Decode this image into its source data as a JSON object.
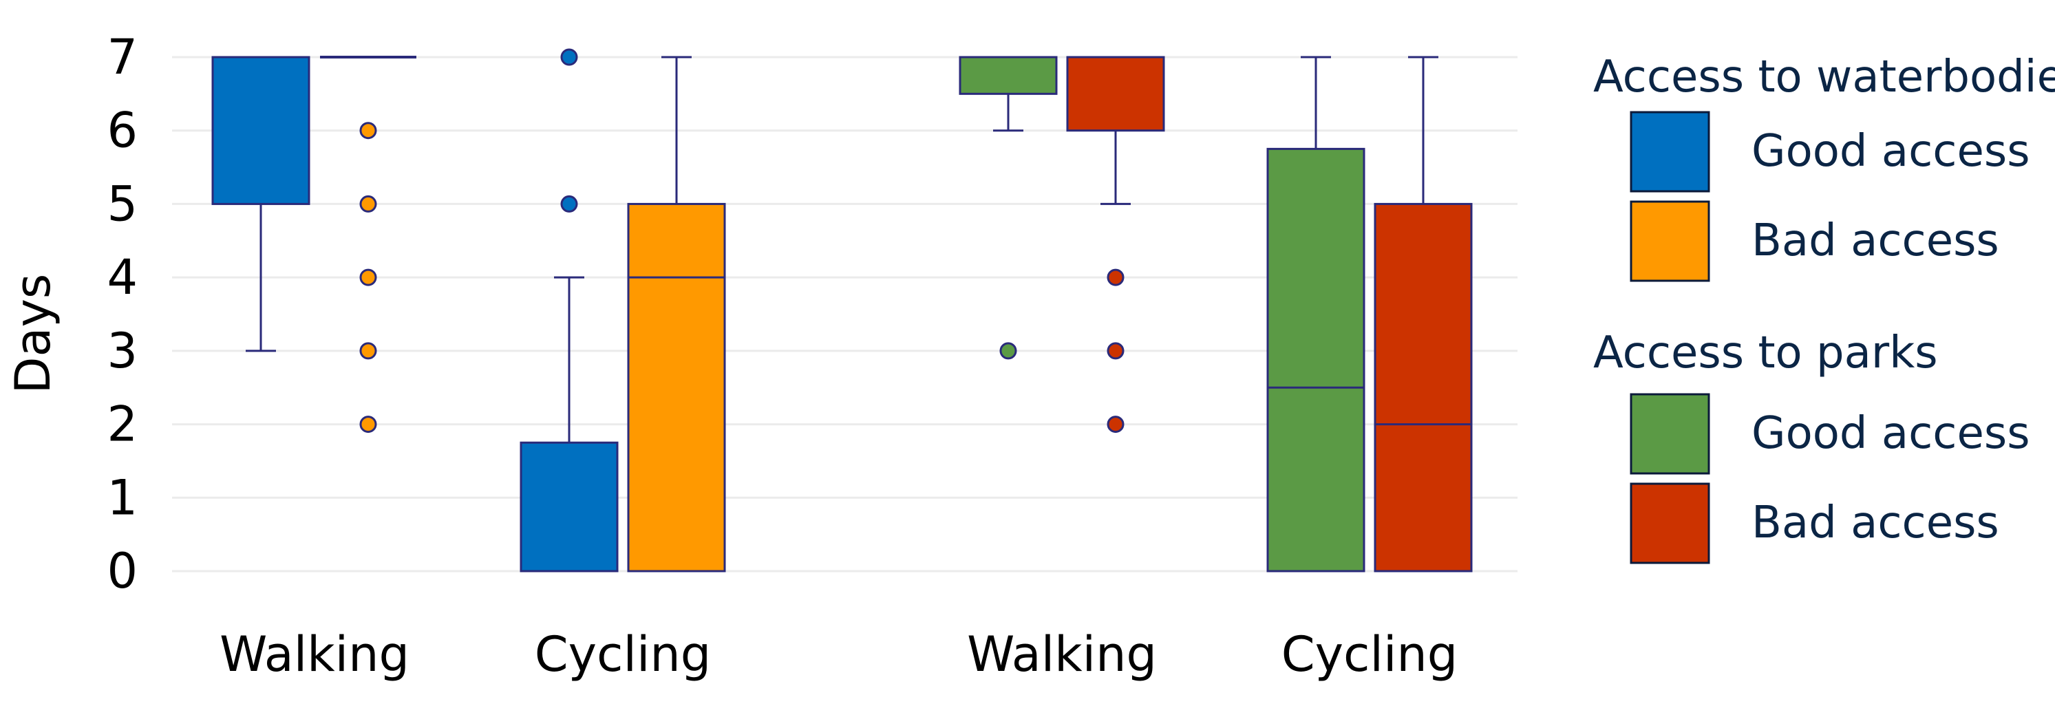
{
  "chart_data": {
    "type": "boxplot",
    "title": "",
    "ylabel": "Days",
    "ylim": [
      0,
      7
    ],
    "yticks": [
      0,
      1,
      2,
      3,
      4,
      5,
      6,
      7
    ],
    "grid": true,
    "legend_placement": "right",
    "categories": [
      "Walking",
      "Cycling",
      "Walking",
      "Cycling"
    ],
    "groups": [
      {
        "name": "Access to waterbodies",
        "series": [
          {
            "name": "Good access",
            "color": "#0070c0"
          },
          {
            "name": "Bad access",
            "color": "#ff9900"
          }
        ]
      },
      {
        "name": "Access to parks",
        "series": [
          {
            "name": "Good access",
            "color": "#5b9a45"
          },
          {
            "name": "Bad access",
            "color": "#cc3300"
          }
        ]
      }
    ],
    "boxes": [
      {
        "group": 0,
        "series": 0,
        "category": 0,
        "whisker_low": 3,
        "q1": 5,
        "median": 7,
        "q3": 7,
        "whisker_high": 7,
        "outliers": []
      },
      {
        "group": 0,
        "series": 1,
        "category": 0,
        "whisker_low": 7,
        "q1": 7,
        "median": 7,
        "q3": 7,
        "whisker_high": 7,
        "outliers": [
          6,
          5,
          4,
          3,
          2
        ]
      },
      {
        "group": 0,
        "series": 0,
        "category": 1,
        "whisker_low": 0,
        "q1": 0,
        "median": 0,
        "q3": 1.75,
        "whisker_high": 4,
        "outliers": [
          7,
          5
        ]
      },
      {
        "group": 0,
        "series": 1,
        "category": 1,
        "whisker_low": 0,
        "q1": 0,
        "median": 4,
        "q3": 5,
        "whisker_high": 7,
        "outliers": []
      },
      {
        "group": 1,
        "series": 0,
        "category": 2,
        "whisker_low": 6,
        "q1": 6.5,
        "median": 7,
        "q3": 7,
        "whisker_high": 7,
        "outliers": [
          3
        ]
      },
      {
        "group": 1,
        "series": 1,
        "category": 2,
        "whisker_low": 5,
        "q1": 6,
        "median": 7,
        "q3": 7,
        "whisker_high": 7,
        "outliers": [
          4,
          3,
          2
        ]
      },
      {
        "group": 1,
        "series": 0,
        "category": 3,
        "whisker_low": 0,
        "q1": 0,
        "median": 2.5,
        "q3": 5.75,
        "whisker_high": 7,
        "outliers": []
      },
      {
        "group": 1,
        "series": 1,
        "category": 3,
        "whisker_low": 0,
        "q1": 0,
        "median": 2,
        "q3": 5,
        "whisker_high": 7,
        "outliers": []
      }
    ]
  }
}
